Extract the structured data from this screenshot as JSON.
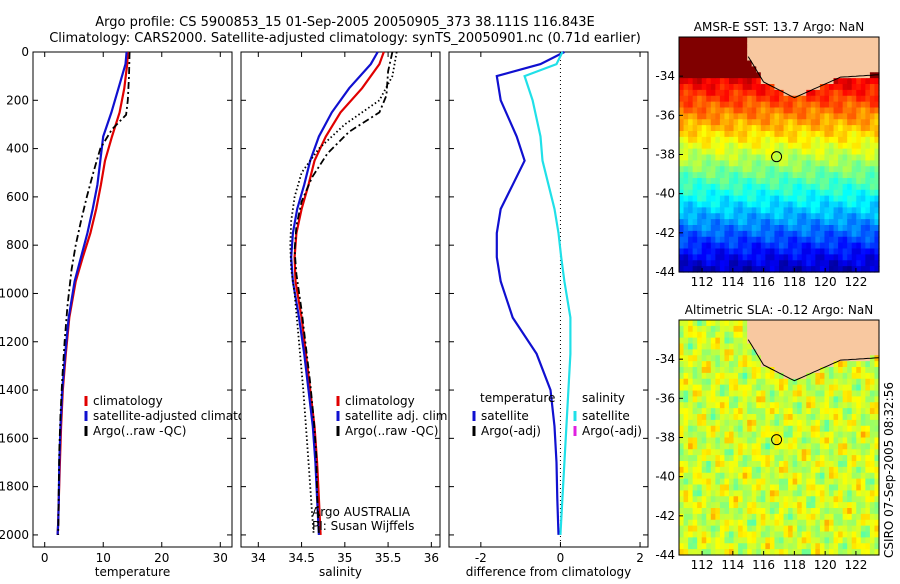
{
  "header": {
    "line1": "Argo profile: CS 5900853_15 01-Sep-2005 20050905_373 38.111S 116.843E",
    "line2": "Climatology: CARS2000. Satellite-adjusted climatology: synTS_20050901.nc (0.71d earlier)"
  },
  "side_stamp": "CSIRO 07-Sep-2005 08:32:56",
  "colors": {
    "climatology": "#e00000",
    "satellite": "#1010d0",
    "argo": "#000000",
    "salinity_sat": "#20e0e8",
    "argo_adj_sal": "#e020e0",
    "land": "#f8c8a0"
  },
  "chart_data": [
    {
      "type": "line",
      "name": "temperature-panel",
      "xlabel": "temperature",
      "ylabel": "",
      "xlim": [
        -2,
        32
      ],
      "ylim": [
        2050,
        0
      ],
      "x_ticks": [
        0,
        10,
        20,
        30
      ],
      "y_ticks": [
        0,
        200,
        400,
        600,
        800,
        1000,
        1200,
        1400,
        1600,
        1800,
        2000
      ],
      "legend": [
        "climatology",
        "satellite-adjusted climatology",
        "Argo(..raw -QC)"
      ],
      "legend_position": "lower-right",
      "series": [
        {
          "name": "climatology",
          "style": "solid",
          "color": "#e00000",
          "x": [
            14.2,
            14.1,
            13.6,
            12.8,
            11.5,
            10.3,
            9.6,
            8.8,
            7.8,
            6.5,
            5.3,
            4.2,
            3.6,
            3.1,
            2.8,
            2.6,
            2.4,
            2.3,
            2.2
          ],
          "y": [
            0,
            50,
            150,
            250,
            350,
            450,
            550,
            650,
            750,
            850,
            950,
            1100,
            1250,
            1400,
            1550,
            1700,
            1850,
            1950,
            2000
          ]
        },
        {
          "name": "satellite-adjusted climatology",
          "style": "solid",
          "color": "#1010d0",
          "x": [
            14.0,
            13.8,
            12.6,
            11.4,
            10.0,
            9.5,
            9.0,
            8.2,
            7.3,
            6.2,
            5.1,
            4.1,
            3.5,
            3.0,
            2.7,
            2.5,
            2.4,
            2.3,
            2.2
          ],
          "y": [
            0,
            50,
            150,
            250,
            350,
            450,
            550,
            650,
            750,
            850,
            950,
            1100,
            1250,
            1400,
            1550,
            1700,
            1850,
            1950,
            2000
          ]
        },
        {
          "name": "Argo(..raw -QC)",
          "style": "dashdot",
          "color": "#000000",
          "x": [
            14.5,
            14.4,
            14.2,
            13.9,
            11.5,
            9.5,
            8.3,
            7.2,
            6.2,
            5.3,
            4.6,
            3.9,
            3.4,
            3.0,
            2.7,
            2.5,
            2.4,
            2.3
          ],
          "y": [
            0,
            100,
            200,
            260,
            320,
            400,
            500,
            600,
            700,
            800,
            900,
            1050,
            1200,
            1350,
            1500,
            1650,
            1800,
            2000
          ]
        }
      ]
    },
    {
      "type": "line",
      "name": "salinity-panel",
      "xlabel": "salinity",
      "ylabel": "",
      "xlim": [
        33.8,
        36.1
      ],
      "ylim": [
        2050,
        0
      ],
      "x_ticks": [
        34,
        34.5,
        35,
        35.5,
        36
      ],
      "legend": [
        "climatology",
        "satellite adj. clim.",
        "Argo(..raw -QC)"
      ],
      "legend_position": "lower-right",
      "annotation": [
        "Argo AUSTRALIA",
        "PI: Susan Wijffels"
      ],
      "series": [
        {
          "name": "climatology",
          "style": "solid",
          "color": "#e00000",
          "x": [
            35.45,
            35.4,
            35.2,
            34.95,
            34.78,
            34.65,
            34.58,
            34.5,
            34.44,
            34.42,
            34.43,
            34.5,
            34.55,
            34.6,
            34.65,
            34.68,
            34.7,
            34.72
          ],
          "y": [
            0,
            50,
            150,
            250,
            350,
            450,
            550,
            650,
            750,
            850,
            950,
            1100,
            1250,
            1400,
            1550,
            1700,
            1850,
            2000
          ]
        },
        {
          "name": "satellite adj. clim.",
          "style": "solid",
          "color": "#1010d0",
          "x": [
            35.38,
            35.3,
            35.05,
            34.85,
            34.7,
            34.6,
            34.53,
            34.45,
            34.4,
            34.38,
            34.4,
            34.47,
            34.53,
            34.58,
            34.63,
            34.66,
            34.68,
            34.7
          ],
          "y": [
            0,
            50,
            150,
            250,
            350,
            450,
            550,
            650,
            750,
            850,
            950,
            1100,
            1250,
            1400,
            1550,
            1700,
            1850,
            2000
          ]
        },
        {
          "name": "Argo(..raw -QC)",
          "style": "dashdot",
          "color": "#000000",
          "x": [
            35.55,
            35.5,
            35.48,
            35.4,
            35.05,
            34.8,
            34.62,
            34.5,
            34.44,
            34.42,
            34.44,
            34.5,
            34.55,
            34.6,
            34.64,
            34.67,
            34.68,
            34.7
          ],
          "y": [
            0,
            80,
            180,
            250,
            330,
            420,
            520,
            620,
            720,
            820,
            920,
            1070,
            1220,
            1370,
            1520,
            1670,
            1820,
            2000
          ]
        },
        {
          "name": "dotted",
          "style": "dotted",
          "color": "#000000",
          "x": [
            35.6,
            35.55,
            35.4,
            35.0,
            34.7,
            34.5,
            34.42,
            34.38,
            34.37,
            34.38,
            34.42,
            34.47,
            34.52,
            34.56,
            34.59,
            34.62,
            34.64
          ],
          "y": [
            0,
            100,
            200,
            300,
            400,
            500,
            600,
            700,
            800,
            900,
            1000,
            1200,
            1400,
            1600,
            1750,
            1900,
            2000
          ]
        }
      ]
    },
    {
      "type": "line",
      "name": "difference-panel",
      "xlabel": "difference from climatology",
      "ylabel": "",
      "xlim": [
        -2.8,
        2.2
      ],
      "ylim": [
        2050,
        0
      ],
      "x_ticks": [
        -2,
        0,
        2
      ],
      "legend_left_title": "temperature",
      "legend_left": [
        "satellite",
        "Argo(-adj)"
      ],
      "legend_right_title": "salinity",
      "legend_right": [
        "satellite",
        "Argo(-adj)"
      ],
      "series": [
        {
          "name": "temperature satellite",
          "style": "solid",
          "color": "#1010d0",
          "x": [
            0.1,
            -0.5,
            -1.6,
            -1.5,
            -1.1,
            -0.9,
            -1.2,
            -1.5,
            -1.6,
            -1.6,
            -1.5,
            -1.2,
            -0.6,
            -0.25,
            -0.15,
            -0.1,
            -0.08,
            -0.05
          ],
          "y": [
            0,
            50,
            100,
            200,
            350,
            450,
            550,
            650,
            750,
            850,
            950,
            1100,
            1250,
            1400,
            1550,
            1700,
            1850,
            2000
          ]
        },
        {
          "name": "salinity satellite",
          "style": "solid",
          "color": "#20e0e8",
          "x": [
            0.05,
            -0.1,
            -0.9,
            -0.7,
            -0.5,
            -0.45,
            -0.3,
            -0.15,
            -0.05,
            0.02,
            0.1,
            0.25,
            0.25,
            0.2,
            0.15,
            0.1,
            0.05,
            0.0
          ],
          "y": [
            0,
            50,
            100,
            200,
            350,
            450,
            550,
            650,
            750,
            850,
            950,
            1100,
            1250,
            1400,
            1550,
            1700,
            1850,
            2000
          ]
        }
      ]
    },
    {
      "type": "heatmap",
      "name": "sst-map",
      "title": "AMSR-E SST: 13.7 Argo: NaN",
      "x_ticks": [
        112,
        114,
        116,
        118,
        120,
        122
      ],
      "y_ticks": [
        -34,
        -36,
        -38,
        -40,
        -42,
        -44
      ],
      "xlim": [
        110.5,
        123.5
      ],
      "ylim": [
        -44,
        -32
      ],
      "marker": {
        "lon": 116.843,
        "lat": -38.111
      }
    },
    {
      "type": "heatmap",
      "name": "sla-map",
      "title": "Altimetric SLA: -0.12 Argo: NaN",
      "x_ticks": [
        112,
        114,
        116,
        118,
        120,
        122
      ],
      "y_ticks": [
        -34,
        -36,
        -38,
        -40,
        -42,
        -44
      ],
      "xlim": [
        110.5,
        123.5
      ],
      "ylim": [
        -44,
        -32
      ],
      "marker": {
        "lon": 116.843,
        "lat": -38.111
      }
    }
  ]
}
